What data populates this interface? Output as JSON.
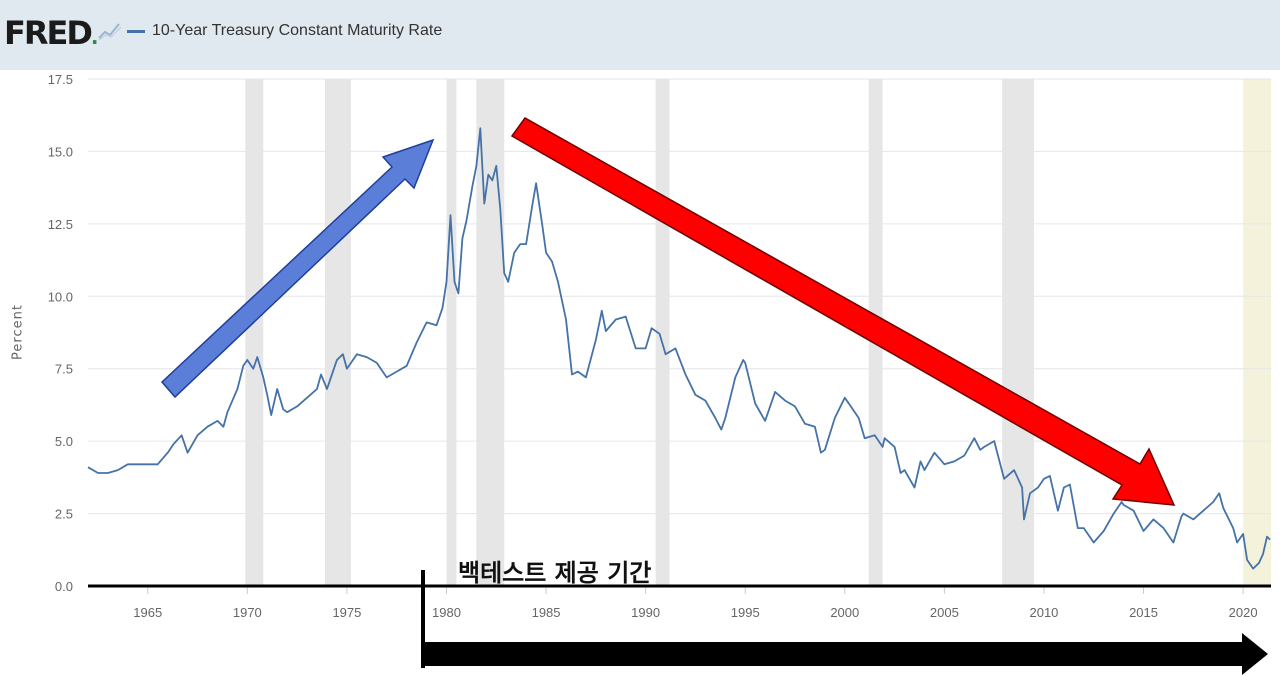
{
  "header": {
    "logo_text": "FRED",
    "logo_dot": ".",
    "logo_icon": "trend-line-icon",
    "legend_label": "10-Year Treasury Constant Maturity Rate"
  },
  "annotation": {
    "backtest_label": "백테스트 제공 기간"
  },
  "colors": {
    "series": "#4572a7",
    "recession_band": "#e6e6e6",
    "forecast_band": "#f5f2dc",
    "up_arrow": "#5b7fd9",
    "down_arrow": "#ff0000",
    "period_arrow": "#000000"
  },
  "chart_data": {
    "type": "line",
    "title": "10-Year Treasury Constant Maturity Rate",
    "xlabel": "",
    "ylabel": "Percent",
    "xlim": [
      1962.0,
      2021.4
    ],
    "ylim": [
      0,
      17.5
    ],
    "yticks": [
      "0.0",
      "2.5",
      "5.0",
      "7.5",
      "10.0",
      "12.5",
      "15.0",
      "17.5"
    ],
    "xticks": [
      "1965",
      "1970",
      "1975",
      "1980",
      "1985",
      "1990",
      "1995",
      "2000",
      "2005",
      "2010",
      "2015",
      "2020"
    ],
    "grid": true,
    "recessions": [
      [
        1969.9,
        1970.8
      ],
      [
        1973.9,
        1975.2
      ],
      [
        1980.0,
        1980.5
      ],
      [
        1981.5,
        1982.9
      ],
      [
        1990.5,
        1991.2
      ],
      [
        2001.2,
        2001.9
      ],
      [
        2007.9,
        2009.5
      ]
    ],
    "shaded_recent": [
      2020.0,
      2021.4
    ],
    "series": [
      {
        "name": "10-Year Treasury Constant Maturity Rate",
        "points": [
          [
            1962.0,
            4.1
          ],
          [
            1962.5,
            3.9
          ],
          [
            1963.0,
            3.9
          ],
          [
            1963.5,
            4.0
          ],
          [
            1964.0,
            4.2
          ],
          [
            1964.5,
            4.2
          ],
          [
            1965.0,
            4.2
          ],
          [
            1965.5,
            4.2
          ],
          [
            1966.0,
            4.6
          ],
          [
            1966.3,
            4.9
          ],
          [
            1966.7,
            5.2
          ],
          [
            1967.0,
            4.6
          ],
          [
            1967.5,
            5.2
          ],
          [
            1968.0,
            5.5
          ],
          [
            1968.5,
            5.7
          ],
          [
            1968.8,
            5.5
          ],
          [
            1969.0,
            6.0
          ],
          [
            1969.5,
            6.8
          ],
          [
            1969.8,
            7.6
          ],
          [
            1970.0,
            7.8
          ],
          [
            1970.3,
            7.5
          ],
          [
            1970.5,
            7.9
          ],
          [
            1970.8,
            7.2
          ],
          [
            1971.0,
            6.6
          ],
          [
            1971.2,
            5.9
          ],
          [
            1971.5,
            6.8
          ],
          [
            1971.8,
            6.1
          ],
          [
            1972.0,
            6.0
          ],
          [
            1972.5,
            6.2
          ],
          [
            1973.0,
            6.5
          ],
          [
            1973.5,
            6.8
          ],
          [
            1973.7,
            7.3
          ],
          [
            1974.0,
            6.8
          ],
          [
            1974.5,
            7.8
          ],
          [
            1974.8,
            8.0
          ],
          [
            1975.0,
            7.5
          ],
          [
            1975.5,
            8.0
          ],
          [
            1976.0,
            7.9
          ],
          [
            1976.5,
            7.7
          ],
          [
            1977.0,
            7.2
          ],
          [
            1977.5,
            7.4
          ],
          [
            1978.0,
            7.6
          ],
          [
            1978.5,
            8.4
          ],
          [
            1979.0,
            9.1
          ],
          [
            1979.5,
            9.0
          ],
          [
            1979.8,
            9.6
          ],
          [
            1980.0,
            10.5
          ],
          [
            1980.2,
            12.8
          ],
          [
            1980.4,
            10.5
          ],
          [
            1980.6,
            10.1
          ],
          [
            1980.8,
            12.0
          ],
          [
            1981.0,
            12.6
          ],
          [
            1981.3,
            13.8
          ],
          [
            1981.5,
            14.5
          ],
          [
            1981.7,
            15.8
          ],
          [
            1981.9,
            13.2
          ],
          [
            1982.1,
            14.2
          ],
          [
            1982.3,
            14.0
          ],
          [
            1982.5,
            14.5
          ],
          [
            1982.7,
            13.0
          ],
          [
            1982.9,
            10.8
          ],
          [
            1983.1,
            10.5
          ],
          [
            1983.4,
            11.5
          ],
          [
            1983.7,
            11.8
          ],
          [
            1984.0,
            11.8
          ],
          [
            1984.3,
            13.1
          ],
          [
            1984.5,
            13.9
          ],
          [
            1984.8,
            12.5
          ],
          [
            1985.0,
            11.5
          ],
          [
            1985.3,
            11.2
          ],
          [
            1985.6,
            10.5
          ],
          [
            1986.0,
            9.2
          ],
          [
            1986.3,
            7.3
          ],
          [
            1986.6,
            7.4
          ],
          [
            1987.0,
            7.2
          ],
          [
            1987.5,
            8.5
          ],
          [
            1987.8,
            9.5
          ],
          [
            1988.0,
            8.8
          ],
          [
            1988.5,
            9.2
          ],
          [
            1989.0,
            9.3
          ],
          [
            1989.5,
            8.2
          ],
          [
            1990.0,
            8.2
          ],
          [
            1990.3,
            8.9
          ],
          [
            1990.7,
            8.7
          ],
          [
            1991.0,
            8.0
          ],
          [
            1991.5,
            8.2
          ],
          [
            1992.0,
            7.3
          ],
          [
            1992.5,
            6.6
          ],
          [
            1993.0,
            6.4
          ],
          [
            1993.5,
            5.8
          ],
          [
            1993.8,
            5.4
          ],
          [
            1994.0,
            5.8
          ],
          [
            1994.5,
            7.2
          ],
          [
            1994.9,
            7.8
          ],
          [
            1995.0,
            7.7
          ],
          [
            1995.5,
            6.3
          ],
          [
            1996.0,
            5.7
          ],
          [
            1996.5,
            6.7
          ],
          [
            1997.0,
            6.4
          ],
          [
            1997.5,
            6.2
          ],
          [
            1998.0,
            5.6
          ],
          [
            1998.5,
            5.5
          ],
          [
            1998.8,
            4.6
          ],
          [
            1999.0,
            4.7
          ],
          [
            1999.5,
            5.8
          ],
          [
            2000.0,
            6.5
          ],
          [
            2000.3,
            6.2
          ],
          [
            2000.7,
            5.8
          ],
          [
            2001.0,
            5.1
          ],
          [
            2001.5,
            5.2
          ],
          [
            2001.9,
            4.8
          ],
          [
            2002.0,
            5.1
          ],
          [
            2002.5,
            4.8
          ],
          [
            2002.8,
            3.9
          ],
          [
            2003.0,
            4.0
          ],
          [
            2003.5,
            3.4
          ],
          [
            2003.8,
            4.3
          ],
          [
            2004.0,
            4.0
          ],
          [
            2004.5,
            4.6
          ],
          [
            2005.0,
            4.2
          ],
          [
            2005.5,
            4.3
          ],
          [
            2006.0,
            4.5
          ],
          [
            2006.5,
            5.1
          ],
          [
            2006.8,
            4.7
          ],
          [
            2007.0,
            4.8
          ],
          [
            2007.5,
            5.0
          ],
          [
            2008.0,
            3.7
          ],
          [
            2008.5,
            4.0
          ],
          [
            2008.9,
            3.4
          ],
          [
            2009.0,
            2.3
          ],
          [
            2009.3,
            3.2
          ],
          [
            2009.7,
            3.4
          ],
          [
            2010.0,
            3.7
          ],
          [
            2010.3,
            3.8
          ],
          [
            2010.7,
            2.6
          ],
          [
            2011.0,
            3.4
          ],
          [
            2011.3,
            3.5
          ],
          [
            2011.7,
            2.0
          ],
          [
            2012.0,
            2.0
          ],
          [
            2012.5,
            1.5
          ],
          [
            2013.0,
            1.9
          ],
          [
            2013.5,
            2.5
          ],
          [
            2013.9,
            2.9
          ],
          [
            2014.0,
            2.8
          ],
          [
            2014.5,
            2.6
          ],
          [
            2015.0,
            1.9
          ],
          [
            2015.5,
            2.3
          ],
          [
            2016.0,
            2.0
          ],
          [
            2016.5,
            1.5
          ],
          [
            2016.9,
            2.4
          ],
          [
            2017.0,
            2.5
          ],
          [
            2017.5,
            2.3
          ],
          [
            2018.0,
            2.6
          ],
          [
            2018.5,
            2.9
          ],
          [
            2018.8,
            3.2
          ],
          [
            2019.0,
            2.7
          ],
          [
            2019.5,
            2.0
          ],
          [
            2019.7,
            1.5
          ],
          [
            2020.0,
            1.8
          ],
          [
            2020.2,
            0.9
          ],
          [
            2020.5,
            0.6
          ],
          [
            2020.8,
            0.8
          ],
          [
            2021.0,
            1.1
          ],
          [
            2021.2,
            1.7
          ],
          [
            2021.35,
            1.6
          ]
        ]
      }
    ]
  }
}
